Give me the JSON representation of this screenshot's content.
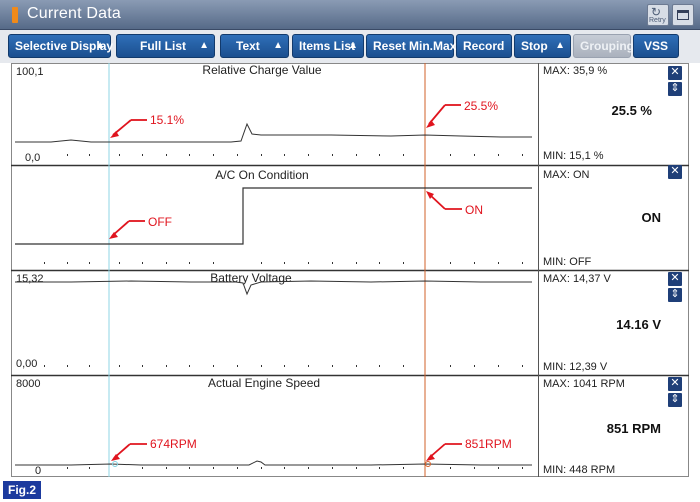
{
  "window": {
    "title": "Current Data",
    "retry_label": "Retry"
  },
  "toolbar": [
    {
      "label": "Selective Display",
      "has_arrow": true,
      "enabled": true
    },
    {
      "label": "Full List",
      "has_arrow": true,
      "enabled": true
    },
    {
      "label": "Text",
      "has_arrow": true,
      "enabled": true
    },
    {
      "label": "Items List",
      "has_arrow": true,
      "enabled": true
    },
    {
      "label": "Reset Min.Max",
      "has_arrow": false,
      "enabled": true
    },
    {
      "label": "Record",
      "has_arrow": false,
      "enabled": true
    },
    {
      "label": "Stop",
      "has_arrow": true,
      "enabled": true
    },
    {
      "label": "Grouping",
      "has_arrow": false,
      "enabled": false
    },
    {
      "label": "VSS",
      "has_arrow": false,
      "enabled": true
    }
  ],
  "colors": {
    "cursor_left": "#7fd0e0",
    "cursor_right": "#d2602a",
    "annotation": "#e0141e",
    "trace": "#222222"
  },
  "graphs": [
    {
      "title": "Relative Charge Value",
      "y_top": "100,1",
      "y_bottom": "0,0",
      "max": "MAX:  35,9 %",
      "min": "MIN:  15,1 %",
      "current": "25.5 %",
      "has_scroll": true,
      "annotations": [
        "15.1%",
        "25.5%"
      ]
    },
    {
      "title": "A/C On Condition",
      "y_top": "",
      "y_bottom": "",
      "max": "MAX: ON",
      "min": "MIN: OFF",
      "current": "ON",
      "has_scroll": false,
      "annotations": [
        "OFF",
        "ON"
      ]
    },
    {
      "title": "Battery Voltage",
      "y_top": "15,32",
      "y_bottom": "0,00",
      "max": "MAX: 14,37 V",
      "min": "MIN: 12,39 V",
      "current": "14.16 V",
      "has_scroll": true,
      "annotations": []
    },
    {
      "title": "Actual Engine Speed",
      "y_top": "8000",
      "y_bottom": "0",
      "max": "MAX:  1041 RPM",
      "min": "MIN:   448 RPM",
      "current": "851 RPM",
      "has_scroll": true,
      "annotations": [
        "674RPM",
        "851RPM"
      ]
    }
  ],
  "figure_label": "Fig.2"
}
